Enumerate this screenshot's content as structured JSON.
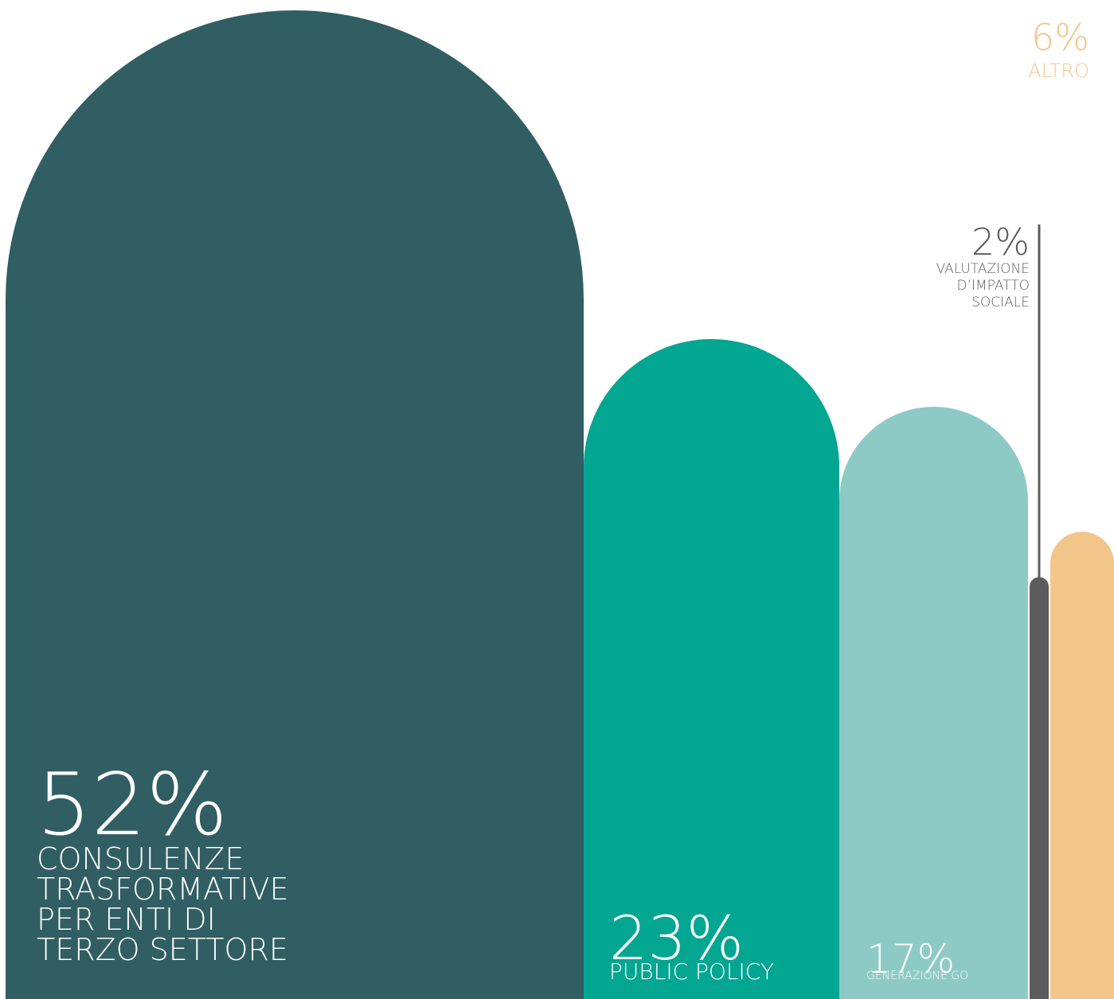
{
  "chart_data": {
    "type": "bar",
    "categories": [
      "CONSULENZE TRASFORMATIVE PER ENTI DI TERZO SETTORE",
      "PUBLIC POLICY",
      "GENERAZIONE GO",
      "VALUTAZIONE D’IMPATTO SOCIALE",
      "ALTRO"
    ],
    "values": [
      52,
      23,
      17,
      2,
      6
    ],
    "value_labels": [
      "52%",
      "23%",
      "17%",
      "2%",
      "6%"
    ],
    "label_lines": [
      [
        "CONSULENZE",
        "TRASFORMATIVE",
        "PER ENTI DI",
        "TERZO SETTORE"
      ],
      [
        "PUBLIC POLICY"
      ],
      [
        "GENERAZIONE GO"
      ],
      [
        "VALUTAZIONE",
        "D’IMPATTO",
        "SOCIALE"
      ],
      [
        "ALTRO"
      ]
    ],
    "colors": [
      "#305e63",
      "#03a691",
      "#8ecac5",
      "#5c5c5c",
      "#f2c68a"
    ],
    "text_colors": [
      "#ffffff",
      "#ffffff",
      "#ffffff",
      "#5c5c5c",
      "#f2c68a"
    ],
    "unit": "%",
    "ylim": [
      0,
      52
    ],
    "grid": false,
    "legend": "none"
  }
}
